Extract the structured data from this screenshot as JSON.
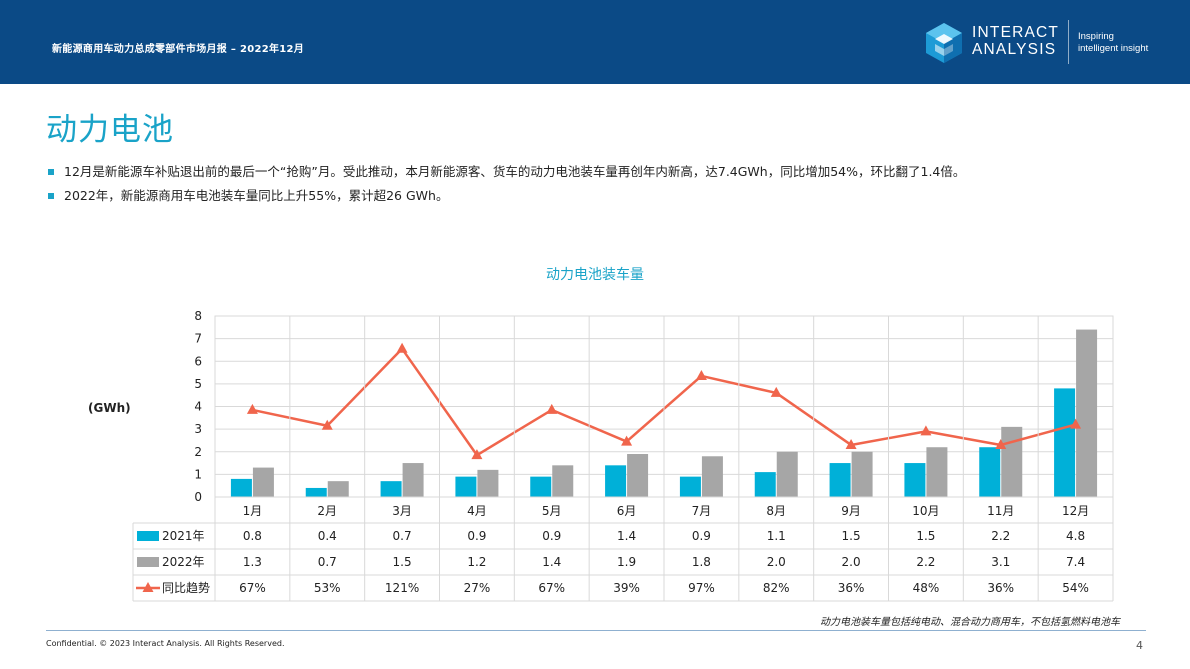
{
  "header": {
    "title": "新能源商用车动力总成零部件市场月报 – 2022年12月",
    "logo_line1": "INTERACT",
    "logo_line2": "ANALYSIS",
    "tagline_line1": "Inspiring",
    "tagline_line2": "intelligent insight"
  },
  "page_title": "动力电池",
  "bullets": [
    "12月是新能源车补贴退出前的最后一个“抢购”月。受此推动，本月新能源客、货车的动力电池装车量再创年内新高，达7.4GWh，同比增加54%，环比翻了1.4倍。",
    "2022年，新能源商用车电池装车量同比上升55%，累计超26 GWh。"
  ],
  "chart_data": {
    "type": "bar",
    "title": "动力电池装车量",
    "ylabel": "(GWh)",
    "ylim": [
      0,
      8
    ],
    "yticks": [
      "0",
      "1",
      "2",
      "3",
      "4",
      "5",
      "6",
      "7",
      "8"
    ],
    "categories": [
      "1月",
      "2月",
      "3月",
      "4月",
      "5月",
      "6月",
      "7月",
      "8月",
      "9月",
      "10月",
      "11月",
      "12月"
    ],
    "series": [
      {
        "name": "2021年",
        "type": "bar",
        "color": "#00b0d8",
        "values": [
          0.8,
          0.4,
          0.7,
          0.9,
          0.9,
          1.4,
          0.9,
          1.1,
          1.5,
          1.5,
          2.2,
          4.8
        ],
        "labels": [
          "0.8",
          "0.4",
          "0.7",
          "0.9",
          "0.9",
          "1.4",
          "0.9",
          "1.1",
          "1.5",
          "1.5",
          "2.2",
          "4.8"
        ]
      },
      {
        "name": "2022年",
        "type": "bar",
        "color": "#a6a6a6",
        "values": [
          1.3,
          0.7,
          1.5,
          1.2,
          1.4,
          1.9,
          1.8,
          2.0,
          2.0,
          2.2,
          3.1,
          7.4
        ],
        "labels": [
          "1.3",
          "0.7",
          "1.5",
          "1.2",
          "1.4",
          "1.9",
          "1.8",
          "2.0",
          "2.0",
          "2.2",
          "3.1",
          "7.4"
        ]
      },
      {
        "name": "同比趋势",
        "type": "line",
        "color": "#f0654c",
        "values": [
          67,
          53,
          121,
          27,
          67,
          39,
          97,
          82,
          36,
          48,
          36,
          54
        ],
        "labels": [
          "67%",
          "53%",
          "121%",
          "27%",
          "67%",
          "39%",
          "97%",
          "82%",
          "36%",
          "48%",
          "36%",
          "54%"
        ]
      }
    ],
    "legend_placement": "table-left",
    "grid": true
  },
  "footnote": "动力电池装车量包括纯电动、混合动力商用车，不包括氢燃料电池车",
  "footer": {
    "confidential": "Confidential. © 2023 Interact Analysis. All Rights Reserved.",
    "page_number": "4"
  }
}
